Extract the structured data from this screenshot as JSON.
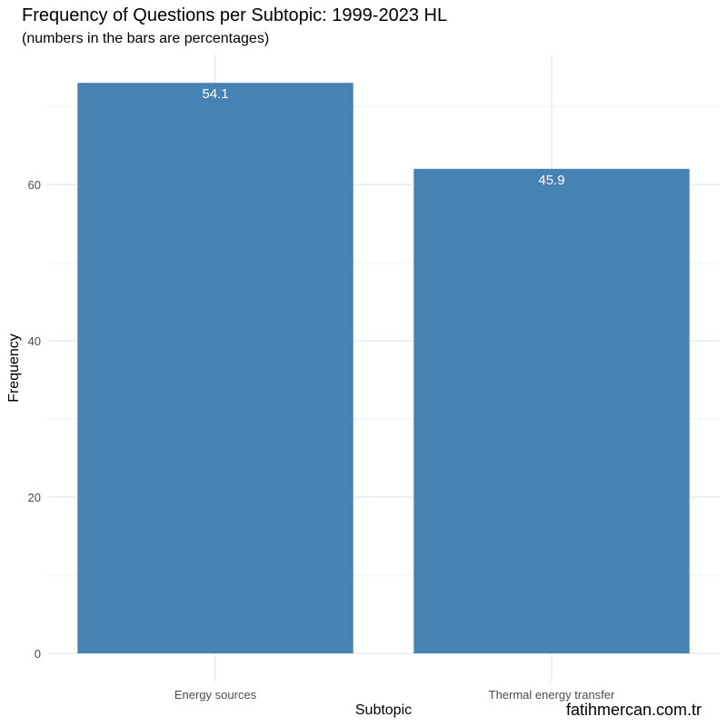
{
  "chart_data": {
    "type": "bar",
    "title": "Frequency of Questions per Subtopic: 1999-2023 HL",
    "subtitle": "(numbers in the bars are percentages)",
    "xlabel": "Subtopic",
    "ylabel": "Frequency",
    "categories": [
      "Energy sources",
      "Thermal energy transfer"
    ],
    "values": [
      73,
      62
    ],
    "bar_labels": [
      "54.1",
      "45.9"
    ],
    "ylim": [
      0,
      73
    ],
    "yticks": [
      0,
      20,
      40,
      60
    ],
    "grid": true,
    "bar_color": "#4682B4",
    "caption": "fatihmercan.com.tr"
  }
}
